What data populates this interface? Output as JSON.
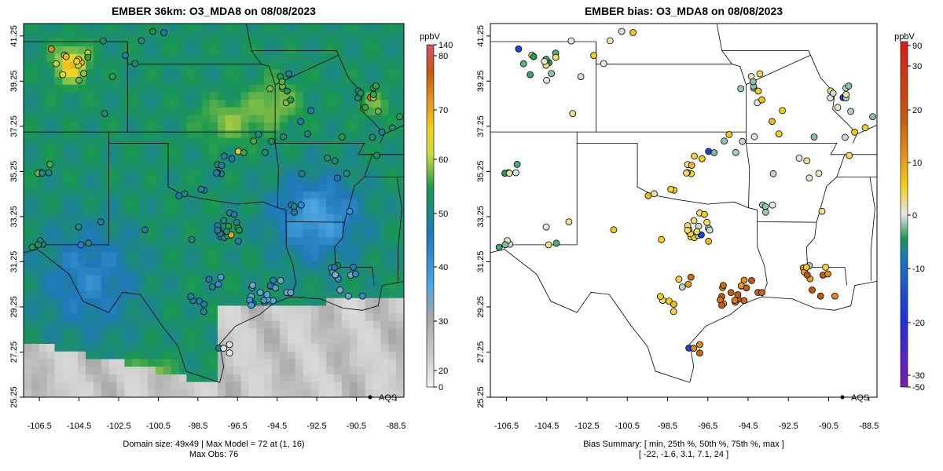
{
  "left_panel": {
    "title": "EMBER 36km: O3_MDA8 on 08/08/2023",
    "unit": "ppbV",
    "footer_line1": "Domain size: 49x49 | Max Model = 72 at (1, 16)",
    "footer_line2": "Max Obs: 76",
    "legend_label": "AQS",
    "colorbar_ticks": [
      "140",
      "80",
      "70",
      "60",
      "50",
      "40",
      "30",
      "20",
      "0"
    ]
  },
  "right_panel": {
    "title": "EMBER bias: O3_MDA8 on 08/08/2023",
    "unit": "ppbV",
    "footer_line1": "Bias Summary: [ min, 25th %, 50th %, 75th %, max ]",
    "footer_line2": "[ -22,   -1.6,   3.1,   7.1,   24 ]",
    "legend_label": "AQS",
    "colorbar_ticks": [
      "90",
      "30",
      "20",
      "10",
      "0",
      "-10",
      "-20",
      "-30",
      "-50"
    ]
  },
  "axes": {
    "x_ticks": [
      "-106.5",
      "-104.5",
      "-102.5",
      "-100.5",
      "-98.5",
      "-96.5",
      "-94.5",
      "-92.5",
      "-90.5",
      "-88.5"
    ],
    "y_ticks": [
      "41.25",
      "39.25",
      "37.25",
      "35.25",
      "33.25",
      "31.25",
      "29.25",
      "27.25",
      "25.25"
    ],
    "x_range": [
      -107.3,
      -88.1
    ],
    "y_range": [
      25.25,
      41.8
    ]
  },
  "bias_summary": {
    "min": -22,
    "p25": -1.6,
    "p50": 3.1,
    "p75": 7.1,
    "max": 24
  },
  "colors": {
    "model_scale": [
      "#f4f4f4",
      "#a8a8a8",
      "#4aa6e0",
      "#1f78b8",
      "#1a9850",
      "#c8dc3c",
      "#f0d21c",
      "#e08c1c",
      "#c25a10",
      "#d9506a"
    ],
    "bias_scale": [
      "#7a1fa8",
      "#2030e0",
      "#1f78b8",
      "#1a9850",
      "#e6e6e6",
      "#f0d21c",
      "#e08c1c",
      "#c25a10",
      "#d81b1b"
    ]
  }
}
